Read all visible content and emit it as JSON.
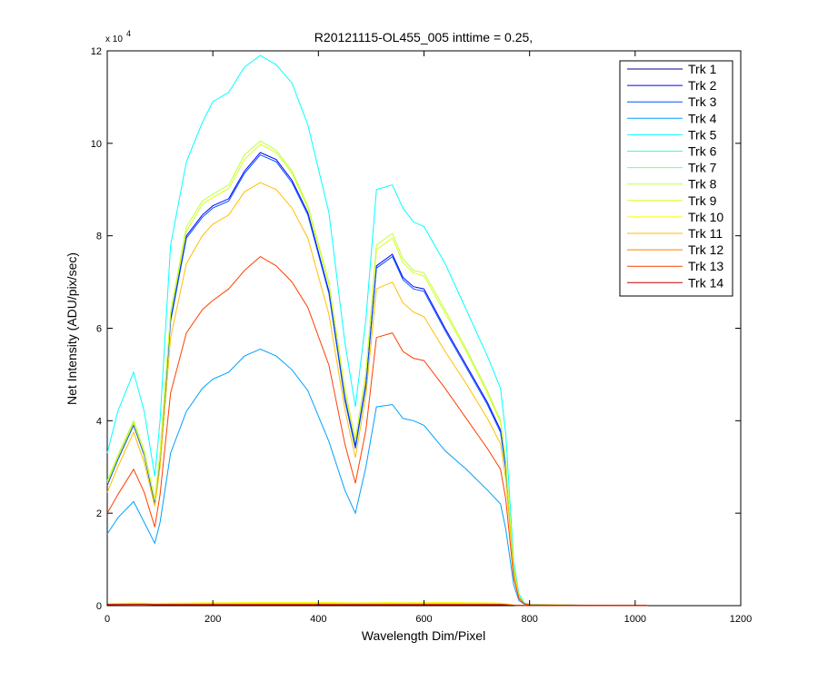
{
  "chart_data": {
    "type": "line",
    "title": "R20121115-OL455_005 inttime = 0.25,",
    "xlabel": "Wavelength Dim/Pixel",
    "ylabel": "Net Intensity (ADU/pix/sec)",
    "xlim": [
      0,
      1200
    ],
    "ylim": [
      0,
      120000
    ],
    "x_ticks": [
      0,
      200,
      400,
      600,
      800,
      1000,
      1200
    ],
    "y_ticks": [
      0,
      2,
      4,
      6,
      8,
      10,
      12
    ],
    "y_exponent_label": "x 10",
    "y_exponent": "4",
    "grid": false,
    "legend_position": "top-right",
    "series": [
      {
        "name": "Trk 1",
        "color": "#00008f",
        "x": [
          0,
          20,
          50,
          70,
          90,
          100,
          120,
          150,
          180,
          200,
          230,
          260,
          290,
          320,
          350,
          380,
          420,
          450,
          470,
          490,
          510,
          540,
          560,
          580,
          600,
          640,
          680,
          720,
          745,
          755,
          770,
          780,
          790,
          800,
          900,
          1000,
          1023
        ],
        "y": [
          300,
          350,
          400,
          380,
          300,
          300,
          300,
          300,
          300,
          300,
          300,
          300,
          300,
          300,
          300,
          300,
          300,
          300,
          300,
          300,
          300,
          300,
          300,
          300,
          300,
          300,
          300,
          300,
          300,
          300,
          100,
          50,
          20,
          20,
          20,
          20,
          20
        ]
      },
      {
        "name": "Trk 2",
        "color": "#0000ff",
        "x": [
          0,
          20,
          50,
          70,
          90,
          100,
          120,
          150,
          180,
          200,
          230,
          260,
          290,
          320,
          350,
          380,
          420,
          450,
          470,
          490,
          510,
          540,
          560,
          580,
          600,
          640,
          680,
          720,
          745,
          755,
          770,
          780,
          790,
          800,
          900,
          1000,
          1023
        ],
        "y": [
          26000,
          32000,
          39500,
          33000,
          22500,
          32000,
          62000,
          80000,
          84500,
          86500,
          88000,
          94000,
          98000,
          96500,
          92000,
          85000,
          68000,
          45000,
          34500,
          48000,
          73500,
          76000,
          71000,
          69000,
          68500,
          60000,
          52000,
          44000,
          38000,
          30000,
          8000,
          2000,
          500,
          200,
          100,
          50,
          50
        ]
      },
      {
        "name": "Trk 3",
        "color": "#0050ff",
        "x": [
          0,
          20,
          50,
          70,
          90,
          100,
          120,
          150,
          180,
          200,
          230,
          260,
          290,
          320,
          350,
          380,
          420,
          450,
          470,
          490,
          510,
          540,
          560,
          580,
          600,
          640,
          680,
          720,
          745,
          755,
          770,
          780,
          790,
          800,
          900,
          1000,
          1023
        ],
        "y": [
          26000,
          31500,
          39000,
          32500,
          22000,
          31500,
          61500,
          79500,
          84000,
          86000,
          87500,
          93500,
          97500,
          96000,
          91500,
          84500,
          67500,
          44500,
          34000,
          47500,
          73000,
          75500,
          70500,
          68500,
          68000,
          59500,
          51500,
          43500,
          37500,
          29500,
          7800,
          1900,
          450,
          200,
          100,
          50,
          50
        ]
      },
      {
        "name": "Trk 4",
        "color": "#00a0ff",
        "x": [
          0,
          20,
          50,
          70,
          90,
          100,
          120,
          150,
          180,
          200,
          230,
          260,
          290,
          320,
          350,
          380,
          420,
          450,
          470,
          490,
          510,
          540,
          560,
          580,
          600,
          640,
          680,
          720,
          745,
          755,
          770,
          780,
          790,
          800,
          900,
          1000,
          1023
        ],
        "y": [
          15500,
          19000,
          22500,
          18000,
          13500,
          18000,
          33000,
          42000,
          47000,
          49000,
          50500,
          54000,
          55500,
          54000,
          51000,
          46500,
          35500,
          25000,
          20000,
          30000,
          43000,
          43500,
          40500,
          40000,
          39000,
          33500,
          29500,
          25000,
          22000,
          16500,
          4500,
          1100,
          300,
          100,
          50,
          50,
          50
        ]
      },
      {
        "name": "Trk 5",
        "color": "#00ffff",
        "x": [
          0,
          20,
          50,
          70,
          90,
          100,
          120,
          150,
          180,
          200,
          230,
          260,
          290,
          320,
          350,
          380,
          420,
          450,
          470,
          490,
          510,
          540,
          560,
          580,
          600,
          640,
          680,
          720,
          745,
          755,
          770,
          780,
          790,
          800,
          900,
          1000,
          1023
        ],
        "y": [
          33000,
          42000,
          50500,
          42000,
          28000,
          40000,
          78000,
          96000,
          104500,
          109000,
          111000,
          116500,
          119000,
          117000,
          113000,
          104000,
          85000,
          57000,
          43000,
          62000,
          90000,
          91000,
          86000,
          83000,
          82000,
          74000,
          64000,
          54000,
          47000,
          37000,
          9500,
          2500,
          600,
          300,
          100,
          50,
          50
        ]
      },
      {
        "name": "Trk 6",
        "color": "#3fffbf",
        "x": [
          0,
          20,
          50,
          70,
          90,
          100,
          120,
          150,
          180,
          200,
          230,
          260,
          290,
          320,
          350,
          380,
          420,
          450,
          470,
          490,
          510,
          540,
          560,
          580,
          600,
          640,
          680,
          720,
          745,
          755,
          770,
          780,
          790,
          800,
          900,
          1000,
          1023
        ],
        "y": [
          400,
          420,
          450,
          420,
          380,
          400,
          400,
          420,
          450,
          450,
          450,
          450,
          450,
          450,
          450,
          450,
          450,
          450,
          450,
          450,
          450,
          450,
          450,
          450,
          450,
          450,
          450,
          420,
          400,
          300,
          100,
          50,
          20,
          20,
          20,
          20,
          20
        ]
      },
      {
        "name": "Trk 7",
        "color": "#80ff80",
        "x": [
          0,
          20,
          50,
          70,
          90,
          100,
          120,
          150,
          180,
          200,
          230,
          260,
          290,
          320,
          350,
          380,
          420,
          450,
          470,
          490,
          510,
          540,
          560,
          580,
          600,
          640,
          680,
          720,
          745,
          755,
          770,
          780,
          790,
          800,
          900,
          1000,
          1023
        ],
        "y": [
          300,
          320,
          350,
          330,
          300,
          300,
          300,
          300,
          300,
          300,
          300,
          300,
          300,
          300,
          300,
          300,
          300,
          300,
          300,
          300,
          300,
          300,
          300,
          300,
          300,
          300,
          300,
          300,
          300,
          250,
          100,
          50,
          20,
          20,
          20,
          20,
          20
        ]
      },
      {
        "name": "Trk 8",
        "color": "#bfff40",
        "x": [
          0,
          20,
          50,
          70,
          90,
          100,
          120,
          150,
          180,
          200,
          230,
          260,
          290,
          320,
          350,
          380,
          420,
          450,
          470,
          490,
          510,
          540,
          560,
          580,
          600,
          640,
          680,
          720,
          745,
          755,
          770,
          780,
          790,
          800,
          900,
          1000,
          1023
        ],
        "y": [
          27000,
          32500,
          40000,
          33500,
          23000,
          33000,
          63500,
          82000,
          87500,
          89000,
          91000,
          97500,
          100500,
          98500,
          94000,
          86500,
          70000,
          47000,
          36000,
          50500,
          78000,
          80500,
          75000,
          72500,
          72000,
          64000,
          55500,
          46500,
          40000,
          31500,
          8200,
          2000,
          500,
          200,
          100,
          50,
          50
        ]
      },
      {
        "name": "Trk 9",
        "color": "#d6ff20",
        "x": [
          0,
          20,
          50,
          70,
          90,
          100,
          120,
          150,
          180,
          200,
          230,
          260,
          290,
          320,
          350,
          380,
          420,
          450,
          470,
          490,
          510,
          540,
          560,
          580,
          600,
          640,
          680,
          720,
          745,
          755,
          770,
          780,
          790,
          800,
          900,
          1000,
          1023
        ],
        "y": [
          26500,
          32000,
          39500,
          33000,
          22800,
          32500,
          63000,
          81000,
          86800,
          88300,
          90200,
          96500,
          99800,
          98000,
          93500,
          86000,
          69500,
          46500,
          35500,
          50000,
          77000,
          79500,
          74200,
          72000,
          71300,
          63300,
          55000,
          46000,
          39600,
          31000,
          8100,
          2000,
          500,
          200,
          100,
          50,
          50
        ]
      },
      {
        "name": "Trk 10",
        "color": "#ffff00",
        "x": [
          0,
          20,
          50,
          70,
          90,
          100,
          120,
          150,
          180,
          200,
          230,
          260,
          290,
          320,
          350,
          380,
          420,
          450,
          470,
          490,
          510,
          540,
          560,
          580,
          600,
          640,
          680,
          720,
          745,
          755,
          770,
          780,
          790,
          800,
          900,
          1000,
          1023
        ],
        "y": [
          500,
          520,
          560,
          540,
          500,
          520,
          540,
          560,
          600,
          620,
          640,
          660,
          680,
          680,
          680,
          680,
          680,
          650,
          600,
          620,
          650,
          700,
          720,
          700,
          700,
          680,
          650,
          600,
          550,
          450,
          150,
          80,
          40,
          30,
          30,
          30,
          30
        ]
      },
      {
        "name": "Trk 11",
        "color": "#ffbf00",
        "x": [
          0,
          20,
          50,
          70,
          90,
          100,
          120,
          150,
          180,
          200,
          230,
          260,
          290,
          320,
          350,
          380,
          420,
          450,
          470,
          490,
          510,
          540,
          560,
          580,
          600,
          640,
          680,
          720,
          745,
          755,
          770,
          780,
          790,
          800,
          900,
          1000,
          1023
        ],
        "y": [
          24500,
          30000,
          37500,
          31000,
          21500,
          30000,
          58000,
          74000,
          80000,
          82500,
          84500,
          89500,
          91500,
          90000,
          86000,
          79500,
          63000,
          42500,
          32000,
          45500,
          68500,
          70000,
          65500,
          63500,
          62500,
          55000,
          48000,
          40500,
          35000,
          27500,
          7200,
          1800,
          450,
          200,
          100,
          50,
          50
        ]
      },
      {
        "name": "Trk 12",
        "color": "#ff8000",
        "x": [
          0,
          20,
          50,
          70,
          90,
          100,
          120,
          150,
          180,
          200,
          230,
          260,
          290,
          320,
          350,
          380,
          420,
          450,
          470,
          490,
          510,
          540,
          560,
          580,
          600,
          640,
          680,
          720,
          745,
          755,
          770,
          780,
          790,
          800,
          900,
          1000,
          1023
        ],
        "y": [
          300,
          320,
          350,
          330,
          300,
          300,
          300,
          300,
          300,
          300,
          300,
          300,
          300,
          300,
          300,
          300,
          300,
          300,
          300,
          300,
          300,
          300,
          300,
          300,
          300,
          300,
          300,
          300,
          300,
          250,
          100,
          50,
          20,
          20,
          20,
          20,
          20
        ]
      },
      {
        "name": "Trk 13",
        "color": "#ff3f00",
        "x": [
          0,
          20,
          50,
          70,
          90,
          100,
          120,
          150,
          180,
          200,
          230,
          260,
          290,
          320,
          350,
          380,
          420,
          450,
          470,
          490,
          510,
          540,
          560,
          580,
          600,
          640,
          680,
          720,
          745,
          755,
          770,
          780,
          790,
          800,
          900,
          1000,
          1023
        ],
        "y": [
          20000,
          24000,
          29500,
          24500,
          17000,
          24000,
          46000,
          59000,
          64000,
          66000,
          68500,
          72500,
          75500,
          73500,
          70000,
          64500,
          52000,
          35000,
          26500,
          38000,
          58000,
          59000,
          55000,
          53500,
          53000,
          47000,
          40500,
          34000,
          29500,
          23000,
          6000,
          1500,
          400,
          150,
          80,
          40,
          40
        ]
      },
      {
        "name": "Trk 14",
        "color": "#c00000",
        "x": [
          0,
          20,
          50,
          70,
          90,
          100,
          120,
          150,
          180,
          200,
          230,
          260,
          290,
          320,
          350,
          380,
          420,
          450,
          470,
          490,
          510,
          540,
          560,
          580,
          600,
          640,
          680,
          720,
          745,
          755,
          770,
          780,
          790,
          800,
          900,
          1000,
          1023
        ],
        "y": [
          200,
          220,
          250,
          230,
          200,
          200,
          200,
          200,
          200,
          200,
          200,
          200,
          200,
          200,
          200,
          200,
          200,
          200,
          200,
          200,
          200,
          200,
          200,
          200,
          200,
          200,
          200,
          200,
          200,
          180,
          80,
          40,
          20,
          20,
          20,
          20,
          20
        ]
      }
    ]
  }
}
